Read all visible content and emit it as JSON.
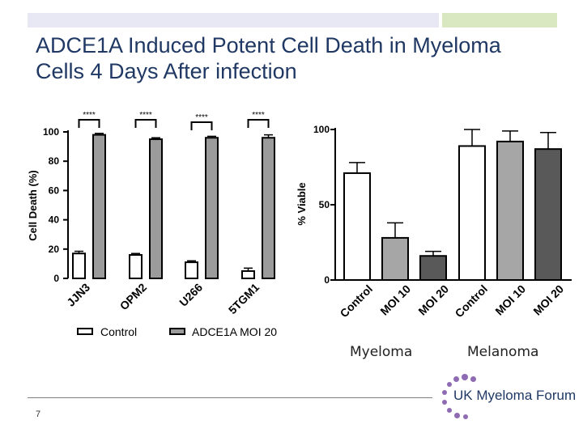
{
  "slide": {
    "title": "ADCE1A Induced Potent Cell Death in Myeloma Cells 4 Days After infection",
    "page_number": "7",
    "caption_left": "Myeloma",
    "caption_right": "Melanoma",
    "logo_text": "UK Myeloma Forum",
    "accent_colors": [
      "#e8e8f4",
      "#d9e8c0",
      "#1f3864",
      "#8e6bb3"
    ]
  },
  "chart_data": [
    {
      "type": "bar",
      "ylabel": "Cell Death (%)",
      "ylim": [
        0,
        100
      ],
      "yticks": [
        0,
        20,
        40,
        60,
        80,
        100
      ],
      "categories": [
        "JJN3",
        "OPM2",
        "U266",
        "5TGM1"
      ],
      "series": [
        {
          "name": "Control",
          "values": [
            17,
            16,
            11,
            5
          ],
          "errors": [
            1.5,
            1,
            1,
            2
          ],
          "color": "#ffffff"
        },
        {
          "name": "ADCE1A MOI 20",
          "values": [
            98,
            95,
            96,
            96
          ],
          "errors": [
            1,
            1,
            1,
            2
          ],
          "color": "#9b9b9b"
        }
      ],
      "significance": [
        "****",
        "****",
        "****",
        "****"
      ],
      "legend": [
        "Control",
        "ADCE1A MOI 20"
      ],
      "legend_position": "bottom"
    },
    {
      "type": "bar",
      "ylabel": "% Viable",
      "ylim": [
        0,
        100
      ],
      "yticks": [
        0,
        50,
        100
      ],
      "categories": [
        "Control",
        "MOI 10",
        "MOI 20",
        "Control",
        "MOI 10",
        "MOI 20"
      ],
      "values": [
        71,
        28,
        16,
        89,
        92,
        87
      ],
      "errors": [
        7,
        10,
        3,
        11,
        7,
        11
      ],
      "colors": [
        "#ffffff",
        "#a6a6a6",
        "#595959",
        "#ffffff",
        "#a6a6a6",
        "#595959"
      ],
      "groups": [
        "Myeloma",
        "Melanoma"
      ]
    }
  ]
}
